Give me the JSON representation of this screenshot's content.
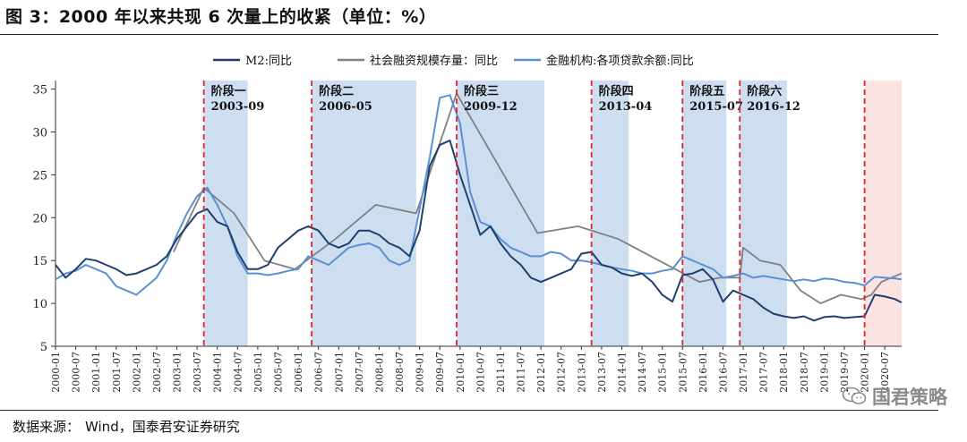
{
  "title": "图 3：2000 年以来共现 6 次量上的收紧（单位：%）",
  "source": {
    "label": "数据来源：",
    "text": "Wind，国泰君安证券研究"
  },
  "watermark": {
    "text": "国君策略",
    "icon": "wechat-icon"
  },
  "colors": {
    "m2": "#1f3f6e",
    "tsf": "#808080",
    "loans": "#5b8fd4",
    "phase_fill": "#c6d8ef",
    "phase_line": "#e0242b",
    "recent_fill": "#fbe3e1"
  },
  "chart_data": {
    "type": "line",
    "x_ticks": [
      "2000-01",
      "2000-07",
      "2001-01",
      "2001-07",
      "2002-01",
      "2002-07",
      "2003-01",
      "2003-07",
      "2004-01",
      "2004-07",
      "2005-01",
      "2005-07",
      "2006-01",
      "2006-07",
      "2007-01",
      "2007-07",
      "2008-01",
      "2008-07",
      "2009-01",
      "2009-07",
      "2010-01",
      "2010-07",
      "2011-01",
      "2011-07",
      "2012-01",
      "2012-07",
      "2013-01",
      "2013-07",
      "2014-01",
      "2014-07",
      "2015-01",
      "2015-07",
      "2016-01",
      "2016-07",
      "2017-01",
      "2017-07",
      "2018-01",
      "2018-07",
      "2019-01",
      "2019-07",
      "2020-01",
      "2020-07"
    ],
    "xlim": [
      "2000-01",
      "2020-12"
    ],
    "y_ticks": [
      5,
      10,
      15,
      20,
      25,
      30,
      35
    ],
    "ylim": [
      5,
      36
    ],
    "legend": [
      "M2:同比",
      "社会融资规模存量：同比",
      "金融机构:各项贷款余额:同比"
    ],
    "legend_position": "top-center",
    "phases": [
      {
        "label": "阶段一",
        "date": "2003-09",
        "start": "2003-09",
        "end": "2004-10"
      },
      {
        "label": "阶段二",
        "date": "2006-05",
        "start": "2006-05",
        "end": "2008-12"
      },
      {
        "label": "阶段三",
        "date": "2009-12",
        "start": "2009-12",
        "end": "2012-02"
      },
      {
        "label": "阶段四",
        "date": "2013-04",
        "start": "2013-04",
        "end": "2014-03"
      },
      {
        "label": "阶段五",
        "date": "2015-07",
        "start": "2015-07",
        "end": "2016-08"
      },
      {
        "label": "阶段六",
        "date": "2016-12",
        "start": "2016-12",
        "end": "2018-02"
      }
    ],
    "recent_marker": {
      "date": "2020-01",
      "shaded_until": "2020-12"
    },
    "series": [
      {
        "name": "M2:同比",
        "points": [
          [
            "2000-01",
            14.5
          ],
          [
            "2000-04",
            13.0
          ],
          [
            "2000-07",
            14.0
          ],
          [
            "2000-10",
            15.2
          ],
          [
            "2001-01",
            15.0
          ],
          [
            "2001-04",
            14.5
          ],
          [
            "2001-07",
            14.0
          ],
          [
            "2001-10",
            13.3
          ],
          [
            "2002-01",
            13.5
          ],
          [
            "2002-04",
            14.0
          ],
          [
            "2002-07",
            14.5
          ],
          [
            "2002-10",
            15.5
          ],
          [
            "2003-01",
            17.5
          ],
          [
            "2003-04",
            19.0
          ],
          [
            "2003-07",
            20.5
          ],
          [
            "2003-10",
            21.0
          ],
          [
            "2004-01",
            19.5
          ],
          [
            "2004-04",
            19.0
          ],
          [
            "2004-07",
            16.0
          ],
          [
            "2004-10",
            14.0
          ],
          [
            "2005-01",
            14.0
          ],
          [
            "2005-04",
            14.5
          ],
          [
            "2005-07",
            16.5
          ],
          [
            "2005-10",
            17.5
          ],
          [
            "2006-01",
            18.5
          ],
          [
            "2006-04",
            19.0
          ],
          [
            "2006-07",
            18.5
          ],
          [
            "2006-10",
            17.0
          ],
          [
            "2007-01",
            16.5
          ],
          [
            "2007-04",
            17.0
          ],
          [
            "2007-07",
            18.5
          ],
          [
            "2007-10",
            18.5
          ],
          [
            "2008-01",
            18.0
          ],
          [
            "2008-04",
            17.0
          ],
          [
            "2008-07",
            16.5
          ],
          [
            "2008-10",
            15.5
          ],
          [
            "2009-01",
            18.5
          ],
          [
            "2009-04",
            26.0
          ],
          [
            "2009-07",
            28.5
          ],
          [
            "2009-10",
            29.0
          ],
          [
            "2010-01",
            25.0
          ],
          [
            "2010-04",
            21.5
          ],
          [
            "2010-07",
            18.0
          ],
          [
            "2010-10",
            19.0
          ],
          [
            "2011-01",
            17.0
          ],
          [
            "2011-04",
            15.5
          ],
          [
            "2011-07",
            14.5
          ],
          [
            "2011-10",
            13.0
          ],
          [
            "2012-01",
            12.5
          ],
          [
            "2012-04",
            13.0
          ],
          [
            "2012-07",
            13.5
          ],
          [
            "2012-10",
            14.0
          ],
          [
            "2013-01",
            15.8
          ],
          [
            "2013-04",
            16.0
          ],
          [
            "2013-07",
            14.5
          ],
          [
            "2013-10",
            14.2
          ],
          [
            "2014-01",
            13.5
          ],
          [
            "2014-04",
            13.2
          ],
          [
            "2014-07",
            13.5
          ],
          [
            "2014-10",
            12.5
          ],
          [
            "2015-01",
            11.0
          ],
          [
            "2015-04",
            10.2
          ],
          [
            "2015-07",
            13.3
          ],
          [
            "2015-10",
            13.5
          ],
          [
            "2016-01",
            14.0
          ],
          [
            "2016-04",
            12.8
          ],
          [
            "2016-07",
            10.2
          ],
          [
            "2016-10",
            11.5
          ],
          [
            "2017-01",
            11.0
          ],
          [
            "2017-04",
            10.5
          ],
          [
            "2017-07",
            9.5
          ],
          [
            "2017-10",
            8.8
          ],
          [
            "2018-01",
            8.5
          ],
          [
            "2018-04",
            8.3
          ],
          [
            "2018-07",
            8.5
          ],
          [
            "2018-10",
            8.0
          ],
          [
            "2019-01",
            8.4
          ],
          [
            "2019-04",
            8.5
          ],
          [
            "2019-07",
            8.3
          ],
          [
            "2019-10",
            8.4
          ],
          [
            "2020-01",
            8.5
          ],
          [
            "2020-04",
            11.0
          ],
          [
            "2020-07",
            10.8
          ],
          [
            "2020-10",
            10.5
          ],
          [
            "2020-12",
            10.1
          ]
        ]
      },
      {
        "name": "社会融资规模存量：同比",
        "points": [
          [
            "2002-12",
            16.0
          ],
          [
            "2003-09",
            23.5
          ],
          [
            "2004-06",
            20.5
          ],
          [
            "2005-03",
            15.0
          ],
          [
            "2005-12",
            14.0
          ],
          [
            "2006-12",
            17.5
          ],
          [
            "2007-12",
            21.5
          ],
          [
            "2008-12",
            20.5
          ],
          [
            "2009-12",
            34.5
          ],
          [
            "2011-12",
            18.2
          ],
          [
            "2012-12",
            19.0
          ],
          [
            "2013-12",
            17.5
          ],
          [
            "2014-12",
            15.0
          ],
          [
            "2015-12",
            12.5
          ],
          [
            "2016-06",
            13.0
          ],
          [
            "2016-12",
            13.0
          ],
          [
            "2017-01",
            16.5
          ],
          [
            "2017-06",
            15.0
          ],
          [
            "2017-12",
            14.5
          ],
          [
            "2018-06",
            11.5
          ],
          [
            "2018-12",
            10.0
          ],
          [
            "2019-06",
            11.0
          ],
          [
            "2019-12",
            10.5
          ],
          [
            "2020-03",
            11.0
          ],
          [
            "2020-06",
            12.5
          ],
          [
            "2020-12",
            13.5
          ]
        ]
      },
      {
        "name": "金融机构:各项贷款余额:同比",
        "points": [
          [
            "2000-01",
            12.8
          ],
          [
            "2000-04",
            13.5
          ],
          [
            "2000-07",
            13.8
          ],
          [
            "2000-10",
            14.5
          ],
          [
            "2001-01",
            14.0
          ],
          [
            "2001-04",
            13.5
          ],
          [
            "2001-07",
            12.0
          ],
          [
            "2001-10",
            11.5
          ],
          [
            "2002-01",
            11.0
          ],
          [
            "2002-04",
            12.0
          ],
          [
            "2002-07",
            13.0
          ],
          [
            "2002-10",
            15.0
          ],
          [
            "2003-01",
            18.0
          ],
          [
            "2003-04",
            20.5
          ],
          [
            "2003-07",
            22.5
          ],
          [
            "2003-10",
            23.5
          ],
          [
            "2004-01",
            21.5
          ],
          [
            "2004-04",
            19.0
          ],
          [
            "2004-07",
            15.5
          ],
          [
            "2004-10",
            13.5
          ],
          [
            "2005-01",
            13.5
          ],
          [
            "2005-04",
            13.3
          ],
          [
            "2005-07",
            13.5
          ],
          [
            "2005-10",
            13.8
          ],
          [
            "2006-01",
            14.0
          ],
          [
            "2006-04",
            15.5
          ],
          [
            "2006-07",
            15.0
          ],
          [
            "2006-10",
            14.5
          ],
          [
            "2007-01",
            15.5
          ],
          [
            "2007-04",
            16.5
          ],
          [
            "2007-07",
            16.8
          ],
          [
            "2007-10",
            17.0
          ],
          [
            "2008-01",
            16.5
          ],
          [
            "2008-04",
            15.0
          ],
          [
            "2008-07",
            14.5
          ],
          [
            "2008-10",
            15.0
          ],
          [
            "2009-01",
            21.0
          ],
          [
            "2009-04",
            27.0
          ],
          [
            "2009-07",
            34.0
          ],
          [
            "2009-10",
            34.3
          ],
          [
            "2010-01",
            31.0
          ],
          [
            "2010-04",
            23.0
          ],
          [
            "2010-07",
            19.5
          ],
          [
            "2010-10",
            19.0
          ],
          [
            "2011-01",
            17.5
          ],
          [
            "2011-04",
            16.5
          ],
          [
            "2011-07",
            16.0
          ],
          [
            "2011-10",
            15.5
          ],
          [
            "2012-01",
            15.5
          ],
          [
            "2012-04",
            16.0
          ],
          [
            "2012-07",
            15.8
          ],
          [
            "2012-10",
            15.0
          ],
          [
            "2013-01",
            15.0
          ],
          [
            "2013-04",
            14.8
          ],
          [
            "2013-07",
            14.5
          ],
          [
            "2013-10",
            14.2
          ],
          [
            "2014-01",
            14.0
          ],
          [
            "2014-04",
            13.8
          ],
          [
            "2014-07",
            13.5
          ],
          [
            "2014-10",
            13.5
          ],
          [
            "2015-01",
            13.8
          ],
          [
            "2015-04",
            14.0
          ],
          [
            "2015-07",
            15.5
          ],
          [
            "2015-10",
            15.0
          ],
          [
            "2016-01",
            14.5
          ],
          [
            "2016-04",
            14.0
          ],
          [
            "2016-07",
            13.0
          ],
          [
            "2016-10",
            13.2
          ],
          [
            "2017-01",
            13.5
          ],
          [
            "2017-04",
            13.0
          ],
          [
            "2017-07",
            13.2
          ],
          [
            "2017-10",
            13.0
          ],
          [
            "2018-01",
            12.8
          ],
          [
            "2018-04",
            12.6
          ],
          [
            "2018-07",
            12.8
          ],
          [
            "2018-10",
            12.6
          ],
          [
            "2019-01",
            12.9
          ],
          [
            "2019-04",
            12.8
          ],
          [
            "2019-07",
            12.5
          ],
          [
            "2019-10",
            12.4
          ],
          [
            "2020-01",
            12.1
          ],
          [
            "2020-04",
            13.1
          ],
          [
            "2020-07",
            13.0
          ],
          [
            "2020-10",
            12.9
          ],
          [
            "2020-12",
            12.8
          ]
        ]
      }
    ]
  }
}
